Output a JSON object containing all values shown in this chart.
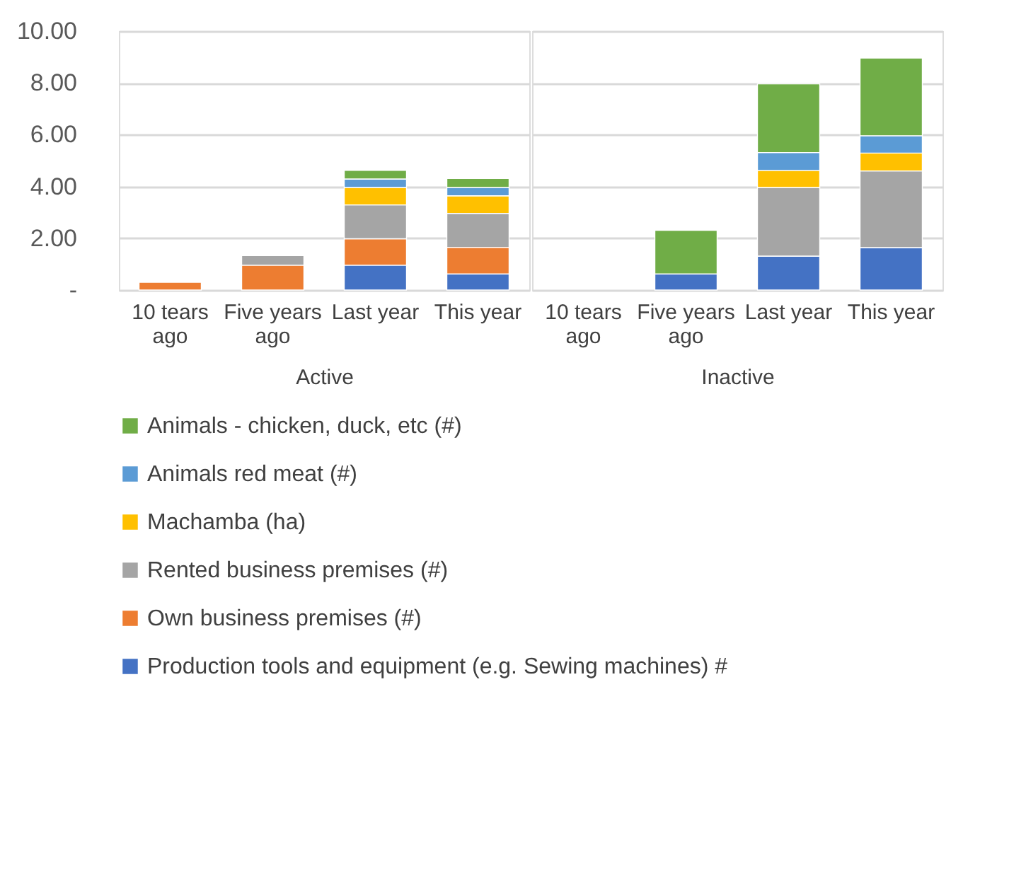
{
  "chart_data": [
    {
      "type": "bar",
      "stacked": true,
      "xlabel": "Active",
      "categories": [
        "10 tears ago",
        "Five years ago",
        "Last year",
        "This year"
      ],
      "ylim": [
        0,
        10
      ],
      "yticks": [
        {
          "value": 0,
          "label": "-"
        },
        {
          "value": 2,
          "label": "2.00"
        },
        {
          "value": 4,
          "label": "4.00"
        },
        {
          "value": 6,
          "label": "6.00"
        },
        {
          "value": 8,
          "label": "8.00"
        },
        {
          "value": 10,
          "label": "10.00"
        }
      ],
      "grid": "y",
      "legend": "bottom",
      "series": [
        {
          "name": "Production tools and equipment (e.g. Sewing machines)  #",
          "color": "#4472c4",
          "values": [
            null,
            null,
            0.96,
            0.62
          ]
        },
        {
          "name": "Own business premises (#)",
          "color": "#ed7d31",
          "values": [
            0.3,
            0.96,
            1.02,
            1.03
          ]
        },
        {
          "name": "Rented business premises (#)",
          "color": "#a5a5a5",
          "values": [
            null,
            0.37,
            1.31,
            1.31
          ]
        },
        {
          "name": "Machamba (ha)",
          "color": "#ffc000",
          "values": [
            null,
            null,
            0.67,
            0.68
          ]
        },
        {
          "name": "Animals red meat (#)",
          "color": "#5b9bd5",
          "values": [
            null,
            null,
            0.33,
            0.32
          ]
        },
        {
          "name": "Animals -  chicken, duck, etc (#)",
          "color": "#70ad47",
          "values": [
            null,
            null,
            0.33,
            0.35
          ]
        }
      ]
    },
    {
      "type": "bar",
      "stacked": true,
      "xlabel": "Inactive",
      "categories": [
        "10 tears ago",
        "Five years ago",
        "Last year",
        "This year"
      ],
      "ylim": [
        0,
        10
      ],
      "yticks": [
        {
          "value": 0,
          "label": "-"
        },
        {
          "value": 2,
          "label": "2.00"
        },
        {
          "value": 4,
          "label": "4.00"
        },
        {
          "value": 6,
          "label": "6.00"
        },
        {
          "value": 8,
          "label": "8.00"
        },
        {
          "value": 10,
          "label": "10.00"
        }
      ],
      "grid": "y",
      "tick_labels": "x",
      "series": [
        {
          "name": "Production tools and equipment (e.g. Sewing machines)  #",
          "color": "#4472c4",
          "values": [
            null,
            0.62,
            1.31,
            1.64
          ]
        },
        {
          "name": "Own business premises (#)",
          "color": "#ed7d31",
          "values": [
            null,
            null,
            null,
            null
          ]
        },
        {
          "name": "Rented business premises (#)",
          "color": "#a5a5a5",
          "values": [
            null,
            null,
            2.65,
            2.96
          ]
        },
        {
          "name": "Machamba (ha)",
          "color": "#ffc000",
          "values": [
            null,
            null,
            0.66,
            0.69
          ]
        },
        {
          "name": "Animals red meat (#)",
          "color": "#5b9bd5",
          "values": [
            null,
            null,
            0.69,
            0.67
          ]
        },
        {
          "name": "Animals -  chicken, duck, etc (#)",
          "color": "#70ad47",
          "values": [
            null,
            1.69,
            2.65,
            3.0
          ]
        }
      ]
    }
  ]
}
